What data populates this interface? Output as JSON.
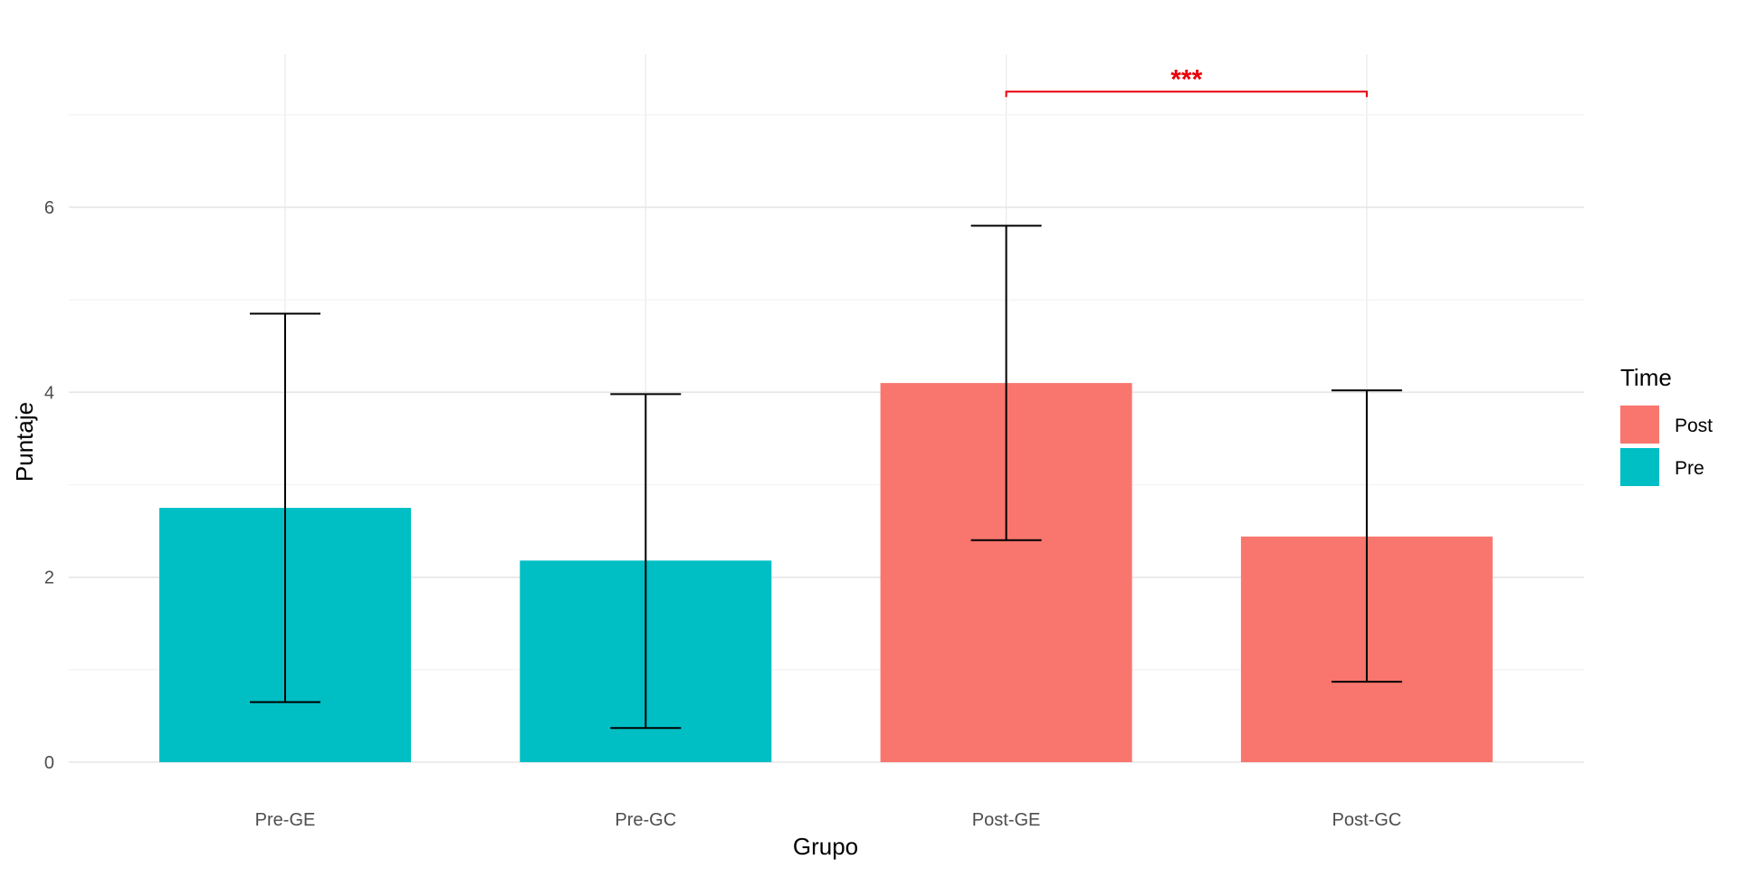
{
  "chart_data": {
    "type": "bar",
    "title": "",
    "xlabel": "Grupo",
    "ylabel": "Puntaje",
    "categories": [
      "Pre-GE",
      "Pre-GC",
      "Post-GE",
      "Post-GC"
    ],
    "values": [
      2.75,
      2.18,
      4.1,
      2.44
    ],
    "error_lower": [
      0.65,
      0.37,
      2.4,
      0.87
    ],
    "error_upper": [
      4.85,
      3.98,
      5.8,
      4.02
    ],
    "fill_group": [
      "Pre",
      "Pre",
      "Post",
      "Post"
    ],
    "ylim": [
      0,
      7.5
    ],
    "yticks": [
      0,
      2,
      4,
      6
    ],
    "grid": true,
    "legend": {
      "title": "Time",
      "position": "right",
      "items": [
        {
          "label": "Post",
          "color": "#F8766D"
        },
        {
          "label": "Pre",
          "color": "#00BFC4"
        }
      ]
    },
    "annotations": [
      {
        "text": "***",
        "from": "Post-GE",
        "to": "Post-GC",
        "y": 7.25,
        "color": "#e8000b"
      }
    ]
  }
}
